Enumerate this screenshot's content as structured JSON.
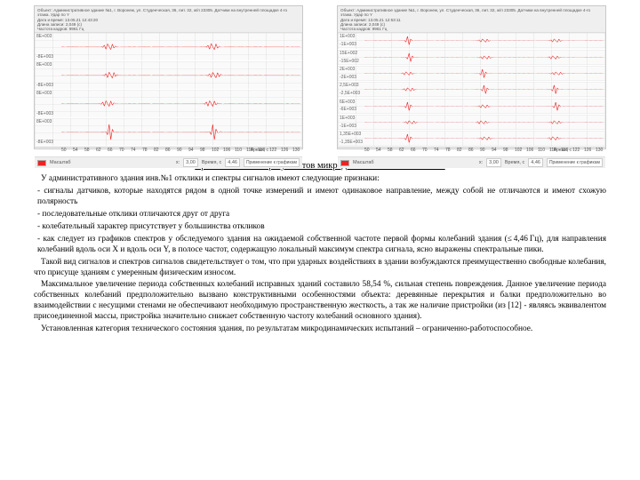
{
  "charts": {
    "left": {
      "header": [
        "Объект: Административное здание №1, г. Воронеж, ул. Студенческая, 36, лит. 32, ж/п 23305. Датчики на внутренней площадке 4-го этажа. Удар по Y",
        "Дата и время: 13.05.21 12:43:20",
        "Длина записи: 2,049 (с)",
        "Частота кадров: 9961 Гц"
      ],
      "traces": [
        {
          "ytop": "8E+003",
          "ybot": "-8E+003"
        },
        {
          "ytop": "8E+003",
          "ybot": "-8E+003"
        },
        {
          "ytop": "8E+003",
          "ybot": "-8E+003"
        },
        {
          "ytop": "8E+003",
          "ybot": "-8E+003"
        }
      ],
      "xticks": [
        "50",
        "54",
        "58",
        "62",
        "66",
        "70",
        "74",
        "78",
        "82",
        "86",
        "90",
        "94",
        "98",
        "102",
        "106",
        "110",
        "114",
        "118",
        "122",
        "126",
        "130"
      ],
      "xlabel": "Время, с",
      "legend": "Масштаб",
      "cursor_x": "3,00",
      "field_x": "Время, с",
      "cursor_y": "4,46",
      "note": "Применение к графикам",
      "trace_color": "#e02222",
      "grid_color": "#e8e8e8",
      "bg": "#fafafa"
    },
    "right": {
      "header": [
        "Объект: Административное здание №1, г. Воронеж, ул. Студенческая, 36, лит. 32, ж/п 23305. Датчики на внутренней площадке 4-го этажа. Удар по Y",
        "Дата и время: 13.05.21 12:53:11",
        "Длина записи: 2,049 (с)",
        "Частота кадров: 9961 Гц"
      ],
      "traces": [
        {
          "ytop": "1E+003",
          "ybot": "-1E+003"
        },
        {
          "ytop": "15E+002",
          "ybot": "-15E+002"
        },
        {
          "ytop": "2E+003",
          "ybot": "-2E+003"
        },
        {
          "ytop": "2,5E+003",
          "ybot": "-2,5E+003"
        },
        {
          "ytop": "6E+003",
          "ybot": "-6E+003"
        },
        {
          "ytop": "1E+003",
          "ybot": "-1E+003"
        },
        {
          "ytop": "1,35E+003",
          "ybot": "-1,35E+003"
        }
      ],
      "xticks": [
        "50",
        "54",
        "58",
        "62",
        "66",
        "70",
        "74",
        "78",
        "82",
        "86",
        "90",
        "94",
        "98",
        "102",
        "106",
        "110",
        "114",
        "118",
        "122",
        "126",
        "130"
      ],
      "xlabel": "Время, с",
      "legend": "Масштаб",
      "cursor_x": "3,00",
      "field_x": "Время, с",
      "cursor_y": "4,46",
      "note": "Применение к графикам",
      "trace_color": "#e02222",
      "grid_color": "#e8e8e8",
      "bg": "#fafafa"
    }
  },
  "text": {
    "title": "Краткое описание результатов микродинамических испытаний",
    "p1": "У административного здания инв.№1 отклики и спектры сигналов имеют следующие признаки:",
    "p2": "- сигналы датчиков, которые находятся рядом в одной точке измерений и имеют одинаковое направление, между собой не отличаются и имеют схожую полярность",
    "p3": "- последовательные отклики отличаются друг от друга",
    "p4": "- колебательный характер присутствует у большинства откликов",
    "p5": "- как следует из графиков спектров у обследуемого здания на ожидаемой собственной частоте первой формы колебаний здания (≤ 4,46 Гц), для направления колебаний вдоль оси X и вдоль оси Y, в полосе частот, содержащую локальный максимум спектра сигнала, ясно выражены спектральные пики.",
    "p6": "Такой вид сигналов и спектров сигналов свидетельствует о том, что при ударных воздействиях в здании возбуждаются преимущественно свободные колебания, что присуще зданиям с умеренным физическим износом.",
    "p7": "Максимальное увеличение периода собственных колебаний исправных зданий составило 58,54 %, сильная степень повреждения. Данное увеличение периода собственных колебаний предположительно вызвано конструктивными особенностями объекта: деревянные перекрытия и балки предположительно во взаимодействии с несущими стенами не обеспечивают необходимую пространственную жесткость, а так же наличие пристройки (из [12] - являясь эквивалентом присоединенной массы, пристройка значительно снижает собственную частоту колебаний основного здания).",
    "p8": "Установленная категория технического состояния здания, по результатам микродинамических испытаний – ограниченно-работоспособное."
  }
}
